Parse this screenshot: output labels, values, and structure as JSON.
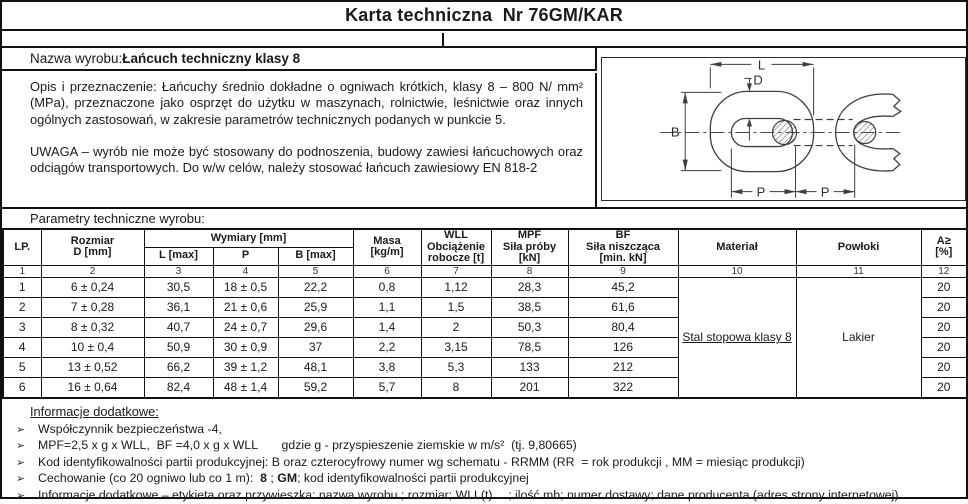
{
  "colors": {
    "ink": "#1a1a1a",
    "border": "#111111",
    "drawing_line": "#3f3f3f",
    "background": "#ffffff"
  },
  "header": {
    "title": "Karta techniczna  Nr 76GM/KAR"
  },
  "product": {
    "name_label": "Nazwa wyrobu: ",
    "name": "Łańcuch techniczny klasy 8",
    "description": "Opis i przeznaczenie: Łańcuchy średnio dokładne o ogniwach krótkich, klasy 8 – 800 N/ mm² (MPa), przeznaczone jako osprzęt do użytku w maszynach, rolnictwie, leśnictwie oraz innych ogólnych zastosowań, w zakresie parametrów technicznych podanych w punkcie 5.",
    "warning": "UWAGA – wyrób nie może być stosowany do podnoszenia, budowy zawiesi łańcuchowych oraz odciągów transportowych. Do w/w celów, należy stosować łańcuch zawiesiowy EN 818-2"
  },
  "drawing": {
    "labels": {
      "l": "L",
      "d": "D",
      "b": "B",
      "p": "P"
    }
  },
  "table": {
    "section_label": "Parametry techniczne wyrobu:",
    "headers": {
      "lp": "LP.",
      "rozmiar": "Rozmiar\nD [mm]",
      "wymiary": "Wymiary [mm]",
      "l": "L [max]",
      "p": "P",
      "b": "B [max]",
      "masa": "Masa\n[kg/m]",
      "wll": "WLL\nObciążenie\nrobocze [t]",
      "mpf": "MPF\nSiła próby\n[kN]",
      "bf": "BF\nSiła niszcząca\n[min. kN]",
      "material": "Materiał",
      "powloki": "Powłoki",
      "a": "A≥\n[%]"
    },
    "column_numbers": [
      "1",
      "2",
      "3",
      "4",
      "5",
      "6",
      "7",
      "8",
      "9",
      "10",
      "11",
      "12"
    ],
    "material": "Stal stopowa klasy 8",
    "coating": "Lakier",
    "rows": [
      {
        "lp": "1",
        "d": "6 ± 0,24",
        "l": "30,5",
        "p": "18 ± 0,5",
        "b": "22,2",
        "masa": "0,8",
        "wll": "1,12",
        "mpf": "28,3",
        "bf": "45,2",
        "a": "20"
      },
      {
        "lp": "2",
        "d": "7 ± 0,28",
        "l": "36,1",
        "p": "21 ± 0,6",
        "b": "25,9",
        "masa": "1,1",
        "wll": "1,5",
        "mpf": "38,5",
        "bf": "61,6",
        "a": "20"
      },
      {
        "lp": "3",
        "d": "8 ± 0,32",
        "l": "40,7",
        "p": "24 ± 0,7",
        "b": "29,6",
        "masa": "1,4",
        "wll": "2",
        "mpf": "50,3",
        "bf": "80,4",
        "a": "20"
      },
      {
        "lp": "4",
        "d": "10 ± 0,4",
        "l": "50,9",
        "p": "30 ± 0,9",
        "b": "37",
        "masa": "2,2",
        "wll": "3,15",
        "mpf": "78,5",
        "bf": "126",
        "a": "20"
      },
      {
        "lp": "5",
        "d": "13 ± 0,52",
        "l": "66,2",
        "p": "39 ± 1,2",
        "b": "48,1",
        "masa": "3,8",
        "wll": "5,3",
        "mpf": "133",
        "bf": "212",
        "a": "20"
      },
      {
        "lp": "6",
        "d": "16 ± 0,64",
        "l": "82,4",
        "p": "48 ± 1,4",
        "b": "59,2",
        "masa": "5,7",
        "wll": "8",
        "mpf": "201",
        "bf": "322",
        "a": "20"
      }
    ]
  },
  "additional_info": {
    "heading": "Informacje dodatkowe:",
    "bullet": "➢",
    "items": [
      {
        "segments": [
          {
            "t": "Współczynnik bezpieczeństwa -4,"
          }
        ]
      },
      {
        "segments": [
          {
            "t": "MPF=2,5 x g x WLL,  BF =4,0 x g x WLL       gdzie g - przyspieszenie ziemskie w m/s²  (tj. 9,80665)"
          }
        ]
      },
      {
        "segments": [
          {
            "t": "Kod identyfikowalności partii produkcyjnej: B oraz czterocyfrowy numer wg schematu - RRMM (RR  = rok produkcji , MM = miesiąc produkcji)"
          }
        ]
      },
      {
        "segments": [
          {
            "t": "Cechowanie (co 20 ogniwo lub co 1 m):  "
          },
          {
            "t": "8",
            "b": true
          },
          {
            "t": " ; "
          },
          {
            "t": "GM",
            "b": true
          },
          {
            "t": "; kod identyfikowalności partii produkcyjnej"
          }
        ]
      },
      {
        "segments": [
          {
            "t": "Informacje dodatkowe – etykieta oraz przywieszka: nazwa wyrobu ; rozmiar; WLL(t)….; ilość mb; numer dostawy; dane producenta (adres strony internetowej)."
          }
        ]
      }
    ]
  }
}
